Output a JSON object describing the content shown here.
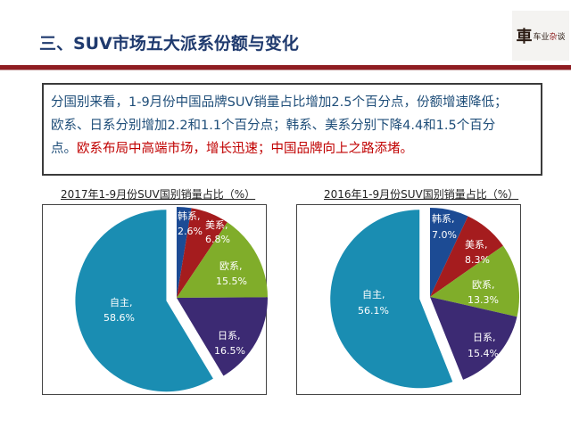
{
  "header": {
    "title": "三、SUV市场五大派系份额与变化",
    "logo": {
      "mark": "車",
      "text_a": "车业",
      "text_b": "杂",
      "text_c": "谈"
    }
  },
  "summary": {
    "line1": "分国别来看，1-9月份中国品牌SUV销量占比增加2.5个百分点，份额增速降低；",
    "line2": "欧系、日系分别增加2.2和1.1个百分点；韩系、美系分别下降4.4和1.5个百分",
    "line3_normal": "点。",
    "line3_highlight": "欧系布局中高端市场，增长迅速；中国品牌向上之路添堵。"
  },
  "colors": {
    "korean": "#1c4b94",
    "american": "#a51c1e",
    "european": "#80ad2a",
    "japanese": "#3c2a73",
    "domestic": "#1a8db2",
    "rule": "#8f1d22",
    "title": "#1f3a6e",
    "highlight": "#c00000"
  },
  "chart_data": [
    {
      "type": "pie",
      "title": "2017年1-9月份SUV国别销量占比（%）",
      "categories": [
        "韩系",
        "美系",
        "欧系",
        "日系",
        "自主"
      ],
      "values": [
        2.6,
        6.8,
        15.5,
        16.5,
        58.6
      ],
      "labels": [
        "韩系,\n2.6%",
        "美系,\n6.8%",
        "欧系,\n15.5%",
        "日系,\n16.5%",
        "自主,\n58.6%"
      ],
      "exploded": "自主",
      "start_angle": "12 o'clock, clockwise"
    },
    {
      "type": "pie",
      "title": "2016年1-9月份SUV国别销量占比（%）",
      "categories": [
        "韩系",
        "美系",
        "欧系",
        "日系",
        "自主"
      ],
      "values": [
        7.0,
        8.3,
        13.3,
        15.4,
        56.1
      ],
      "labels": [
        "韩系,\n7.0%",
        "美系,\n8.3%",
        "欧系,\n13.3%",
        "日系,\n15.4%",
        "自主,\n56.1%"
      ],
      "exploded": "自主",
      "start_angle": "12 o'clock, clockwise"
    }
  ],
  "charts": [
    {
      "title": "2017年1-9月份SUV国别销量占比（%）",
      "labels": [
        {
          "name": "韩系,",
          "pct": "2.6%"
        },
        {
          "name": "美系,",
          "pct": "6.8%"
        },
        {
          "name": "欧系,",
          "pct": "15.5%"
        },
        {
          "name": "日系,",
          "pct": "16.5%"
        },
        {
          "name": "自主,",
          "pct": "58.6%"
        }
      ]
    },
    {
      "title": "2016年1-9月份SUV国别销量占比（%）",
      "labels": [
        {
          "name": "韩系,",
          "pct": "7.0%"
        },
        {
          "name": "美系,",
          "pct": "8.3%"
        },
        {
          "name": "欧系,",
          "pct": "13.3%"
        },
        {
          "name": "日系,",
          "pct": "15.4%"
        },
        {
          "name": "自主,",
          "pct": "56.1%"
        }
      ]
    }
  ]
}
